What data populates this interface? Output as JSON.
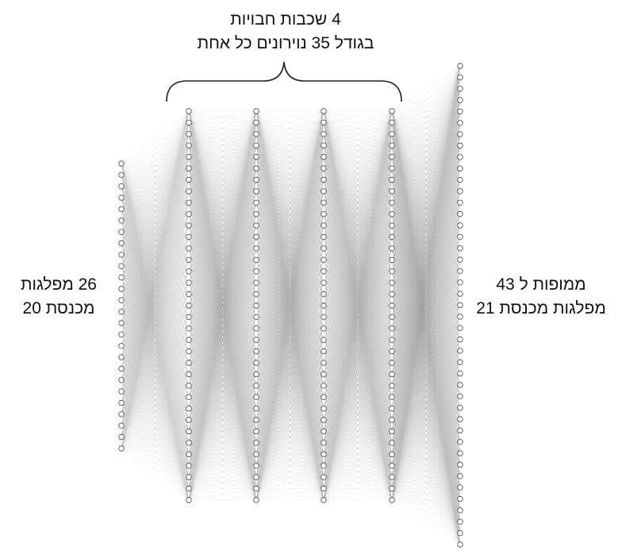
{
  "labels": {
    "hidden_line1": "4 שכבות חבויות",
    "hidden_line2": "בגודל 35 נוירונים כל אחת",
    "input_line1": "26 מפלגות",
    "input_line2": "מכנסת 20",
    "output_line1": "ממופות ל 43",
    "output_line2": "מפלגות מכנסת 21"
  },
  "network": {
    "layers": [
      {
        "name": "input",
        "neurons": 26
      },
      {
        "name": "hidden-1",
        "neurons": 35
      },
      {
        "name": "hidden-2",
        "neurons": 35
      },
      {
        "name": "hidden-3",
        "neurons": 35
      },
      {
        "name": "hidden-4",
        "neurons": 35
      },
      {
        "name": "output",
        "neurons": 43
      }
    ],
    "colors": {
      "node_fill": "#ffffff",
      "node_stroke": "#444444",
      "edge": "#8a8a8a",
      "bracket": "#222222"
    }
  }
}
